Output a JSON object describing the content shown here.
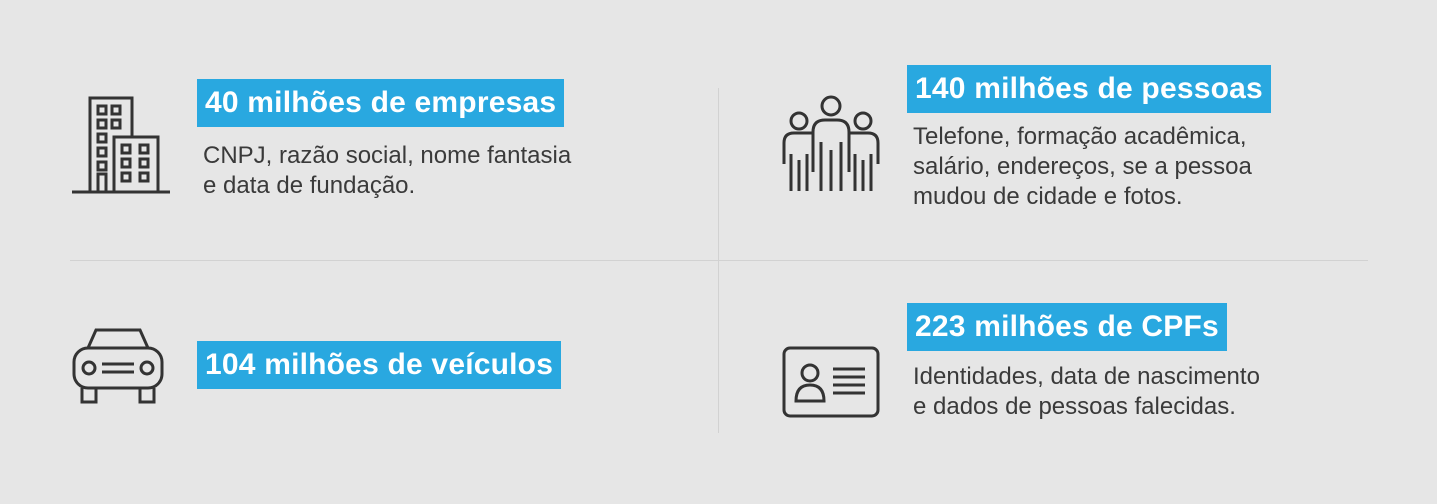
{
  "items": [
    {
      "headline": "40 milhões de empresas",
      "lines": [
        "CNPJ, razão social, nome fantasia",
        "e data de fundação."
      ],
      "icon": "building-icon"
    },
    {
      "headline": "140 milhões de pessoas",
      "lines": [
        "Telefone, formação acadêmica,",
        "salário, endereços, se a pessoa",
        "mudou de cidade e fotos."
      ],
      "icon": "people-icon"
    },
    {
      "headline": "104 milhões de veículos",
      "lines": [],
      "icon": "car-icon"
    },
    {
      "headline": "223 milhões de CPFs",
      "lines": [
        "Identidades, data de nascimento",
        "e dados de pessoas falecidas."
      ],
      "icon": "id-card-icon"
    }
  ],
  "colors": {
    "background": "#e6e6e6",
    "accent": "#29a8e0",
    "text": "#3a3a3a",
    "icon": "#333333"
  }
}
